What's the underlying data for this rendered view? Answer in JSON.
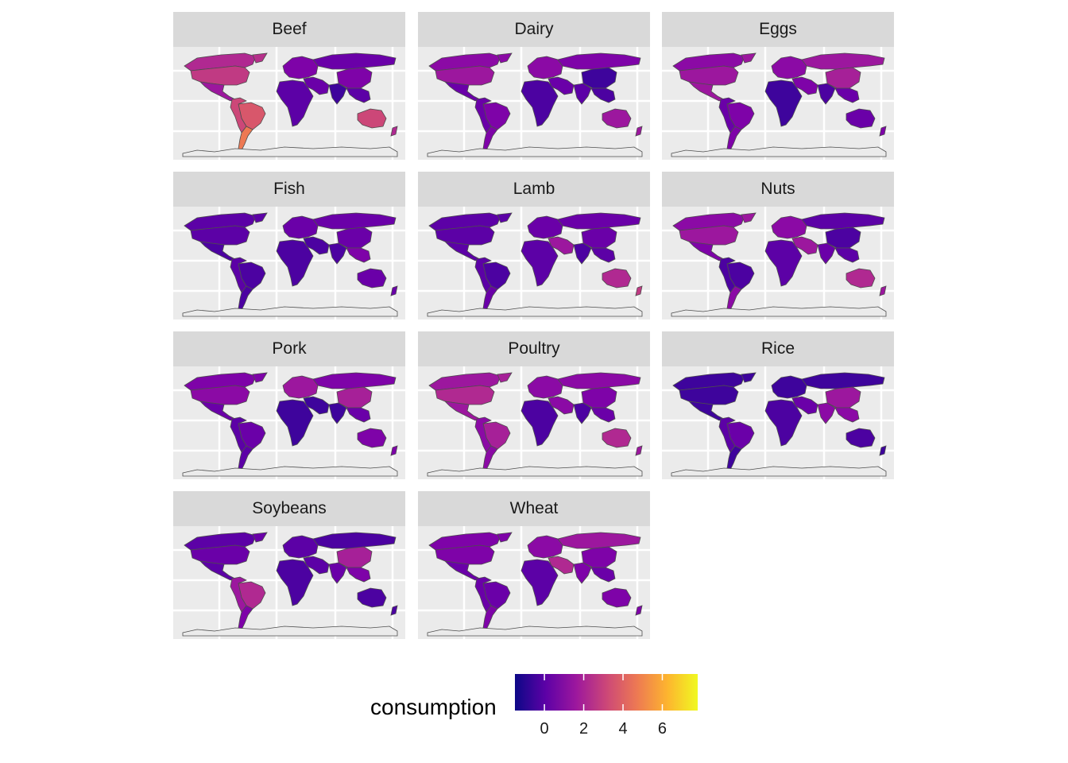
{
  "panels": [
    {
      "label": "Beef",
      "fills": {
        "NA": "#b6308b",
        "US": "#c03a83",
        "CA": "#b02991",
        "MX": "#9c179e",
        "SA": "#cc4778",
        "BR": "#d8576b",
        "AR": "#ed7953",
        "EU": "#7e03a8",
        "AF": "#5c01a6",
        "ME": "#6a00a8",
        "RU": "#6a00a8",
        "AS": "#5c01a6",
        "CN": "#7e03a8",
        "IN": "#3e049c",
        "AU": "#cc4778",
        "NZ": "#b02991"
      }
    },
    {
      "label": "Dairy",
      "fills": {
        "NA": "#8b0aa5",
        "US": "#9c179e",
        "CA": "#8b0aa5",
        "MX": "#6a00a8",
        "SA": "#6a00a8",
        "BR": "#7e03a8",
        "AR": "#7e03a8",
        "EU": "#8b0aa5",
        "AF": "#4c02a1",
        "ME": "#6a00a8",
        "RU": "#7e03a8",
        "AS": "#4c02a1",
        "CN": "#3e049c",
        "IN": "#5c01a6",
        "AU": "#9c179e",
        "NZ": "#9c179e"
      }
    },
    {
      "label": "Eggs",
      "fills": {
        "NA": "#9c179e",
        "US": "#9c179e",
        "CA": "#8b0aa5",
        "MX": "#9c179e",
        "SA": "#6a00a8",
        "BR": "#7e03a8",
        "AR": "#7e03a8",
        "EU": "#8b0aa5",
        "AF": "#3e049c",
        "ME": "#7e03a8",
        "RU": "#9c179e",
        "AS": "#6a00a8",
        "CN": "#a62098",
        "IN": "#4c02a1",
        "AU": "#6a00a8",
        "NZ": "#7e03a8"
      }
    },
    {
      "label": "Fish",
      "fills": {
        "NA": "#5c01a6",
        "US": "#5c01a6",
        "CA": "#5c01a6",
        "MX": "#4c02a1",
        "SA": "#5c01a6",
        "BR": "#4c02a1",
        "AR": "#4c02a1",
        "EU": "#6a00a8",
        "AF": "#4c02a1",
        "ME": "#4c02a1",
        "RU": "#6a00a8",
        "AS": "#7e03a8",
        "CN": "#6a00a8",
        "IN": "#4c02a1",
        "AU": "#6a00a8",
        "NZ": "#6a00a8"
      }
    },
    {
      "label": "Lamb",
      "fills": {
        "NA": "#5c01a6",
        "US": "#5c01a6",
        "CA": "#5c01a6",
        "MX": "#5c01a6",
        "SA": "#5c01a6",
        "BR": "#4c02a1",
        "AR": "#6a00a8",
        "EU": "#6a00a8",
        "AF": "#5c01a6",
        "ME": "#9c179e",
        "RU": "#6a00a8",
        "AS": "#5c01a6",
        "CN": "#6a00a8",
        "IN": "#4c02a1",
        "AU": "#b02991",
        "NZ": "#c03a83"
      }
    },
    {
      "label": "Nuts",
      "fills": {
        "NA": "#9c179e",
        "US": "#9c179e",
        "CA": "#8b0aa5",
        "MX": "#7e03a8",
        "SA": "#4c02a1",
        "BR": "#4c02a1",
        "AR": "#8b0aa5",
        "EU": "#8b0aa5",
        "AF": "#5c01a6",
        "ME": "#9c179e",
        "RU": "#5c01a6",
        "AS": "#5c01a6",
        "CN": "#4c02a1",
        "IN": "#6a00a8",
        "AU": "#b02991",
        "NZ": "#9c179e"
      }
    },
    {
      "label": "Pork",
      "fills": {
        "NA": "#7e03a8",
        "US": "#8b0aa5",
        "CA": "#7e03a8",
        "MX": "#6a00a8",
        "SA": "#5c01a6",
        "BR": "#6a00a8",
        "AR": "#5c01a6",
        "EU": "#9c179e",
        "AF": "#3e049c",
        "ME": "#3e049c",
        "RU": "#7e03a8",
        "AS": "#6a00a8",
        "CN": "#a62098",
        "IN": "#3e049c",
        "AU": "#7e03a8",
        "NZ": "#7e03a8"
      }
    },
    {
      "label": "Poultry",
      "fills": {
        "NA": "#a62098",
        "US": "#b02991",
        "CA": "#9c179e",
        "MX": "#9c179e",
        "SA": "#8b0aa5",
        "BR": "#a62098",
        "AR": "#8b0aa5",
        "EU": "#8b0aa5",
        "AF": "#4c02a1",
        "ME": "#8b0aa5",
        "RU": "#8b0aa5",
        "AS": "#6a00a8",
        "CN": "#7e03a8",
        "IN": "#4c02a1",
        "AU": "#b02991",
        "NZ": "#9c179e"
      }
    },
    {
      "label": "Rice",
      "fills": {
        "NA": "#3e049c",
        "US": "#3e049c",
        "CA": "#3e049c",
        "MX": "#3e049c",
        "SA": "#5c01a6",
        "BR": "#6a00a8",
        "AR": "#3e049c",
        "EU": "#3e049c",
        "AF": "#4c02a1",
        "ME": "#6a00a8",
        "RU": "#3e049c",
        "AS": "#8b0aa5",
        "CN": "#9c179e",
        "IN": "#8b0aa5",
        "AU": "#4c02a1",
        "NZ": "#3e049c"
      }
    },
    {
      "label": "Soybeans",
      "fills": {
        "NA": "#6a00a8",
        "US": "#6a00a8",
        "CA": "#5c01a6",
        "MX": "#5c01a6",
        "SA": "#9c179e",
        "BR": "#b02991",
        "AR": "#7e03a8",
        "EU": "#5c01a6",
        "AF": "#4c02a1",
        "ME": "#5c01a6",
        "RU": "#4c02a1",
        "AS": "#7e03a8",
        "CN": "#a62098",
        "IN": "#6a00a8",
        "AU": "#4c02a1",
        "NZ": "#4c02a1"
      }
    },
    {
      "label": "Wheat",
      "fills": {
        "NA": "#7e03a8",
        "US": "#7e03a8",
        "CA": "#7e03a8",
        "MX": "#6a00a8",
        "SA": "#6a00a8",
        "BR": "#6a00a8",
        "AR": "#7e03a8",
        "EU": "#8b0aa5",
        "AF": "#5c01a6",
        "ME": "#b02991",
        "RU": "#9c179e",
        "AS": "#6a00a8",
        "CN": "#7e03a8",
        "IN": "#7e03a8",
        "AU": "#7e03a8",
        "NZ": "#7e03a8"
      }
    }
  ],
  "legend": {
    "title": "consumption",
    "ticks": [
      {
        "label": "0",
        "value": 0
      },
      {
        "label": "2",
        "value": 2
      },
      {
        "label": "4",
        "value": 4
      },
      {
        "label": "6",
        "value": 6
      }
    ],
    "range": [
      -1.5,
      7.8
    ],
    "gradient": [
      "#0d0887",
      "#5c01a6",
      "#9c179e",
      "#cc4778",
      "#ed7953",
      "#fdb42f",
      "#f0f921"
    ]
  }
}
